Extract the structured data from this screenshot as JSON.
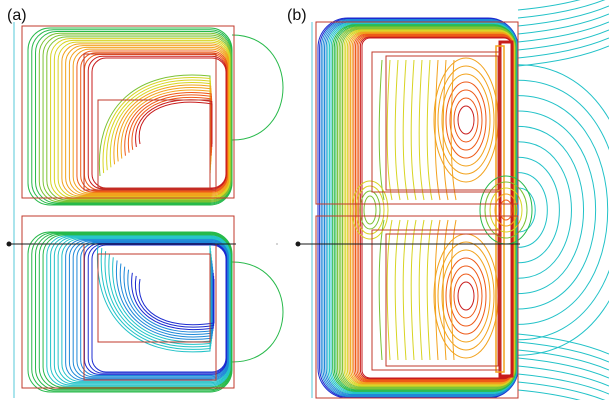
{
  "panels": [
    {
      "id": "a",
      "label": "(a)"
    },
    {
      "id": "b",
      "label": "(b)"
    }
  ],
  "colors": {
    "outline": "#c0392b",
    "axis_vertical": "#55c8d8",
    "axis_horizontal": "#1a1a1a",
    "contour_scale": [
      "#1b2bd0",
      "#1e88d8",
      "#22c2c8",
      "#27b94a",
      "#7cc233",
      "#d8d422",
      "#f2a21c",
      "#ee5a18",
      "#c81b1b"
    ]
  }
}
